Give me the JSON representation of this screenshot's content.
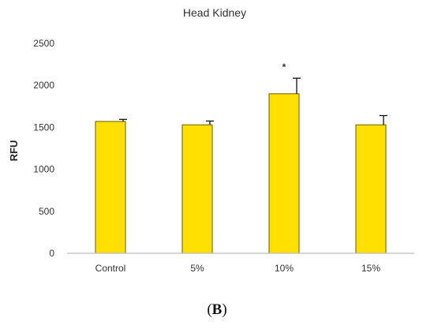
{
  "chart_data": {
    "type": "bar",
    "title": "Head Kidney",
    "xlabel": "",
    "ylabel": "RFU",
    "categories": [
      "Control",
      "5%",
      "10%",
      "15%"
    ],
    "values": [
      1570,
      1530,
      1900,
      1530
    ],
    "errors": [
      25,
      45,
      185,
      110
    ],
    "annotations": [
      "",
      "",
      "*",
      ""
    ],
    "ylim": [
      0,
      2500
    ],
    "yticks": [
      0,
      500,
      1000,
      1500,
      2000,
      2500
    ],
    "grid": false,
    "legend": "none",
    "bar_color": "#FFE000",
    "bar_edge_color": "#6b5a00"
  },
  "figure": {
    "panel_open": "(",
    "panel_letter": "B",
    "panel_close": ")"
  }
}
